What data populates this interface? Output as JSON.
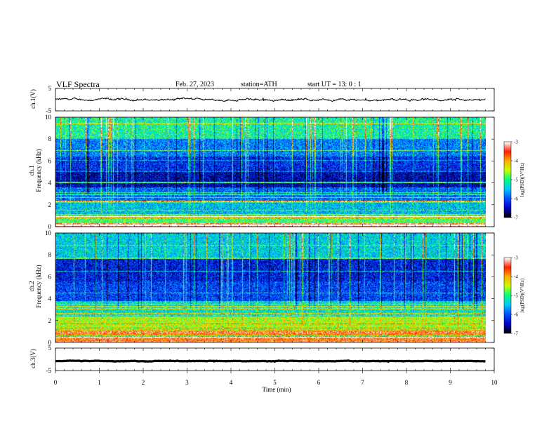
{
  "header": {
    "title": "VLF  Spectra",
    "date": "Feb. 27, 2023",
    "station": "station=ATH",
    "start": "start  UT  =    13: 0   : 1"
  },
  "chart_data": [
    {
      "type": "line",
      "panel": "ch1-waveform",
      "ylabel": "ch.1(V)",
      "yticks": [
        "5",
        "-5"
      ],
      "ylim": [
        -5,
        5
      ],
      "xlim": [
        0,
        10
      ],
      "x_end": 9.8,
      "baseline_value": 0,
      "approx_amplitude": 0.8,
      "color": "#000000"
    },
    {
      "type": "heatmap",
      "panel": "ch1-spectrogram",
      "ylabel": "ch.1\nFrequency  (kHz)",
      "yticks": [
        "0",
        "2",
        "4",
        "6",
        "8",
        "10"
      ],
      "ylim": [
        0,
        10
      ],
      "xlim": [
        0,
        10
      ],
      "x_end": 9.8,
      "bands_kHz": [
        {
          "from": 0.0,
          "to": 0.3,
          "level": -3.4
        },
        {
          "from": 0.3,
          "to": 1.1,
          "level": -4.9
        },
        {
          "from": 1.1,
          "to": 2.2,
          "level": -5.5
        },
        {
          "from": 2.2,
          "to": 3.6,
          "level": -5.9
        },
        {
          "from": 3.6,
          "to": 5.2,
          "level": -6.5
        },
        {
          "from": 5.2,
          "to": 6.4,
          "level": -6.2
        },
        {
          "from": 6.4,
          "to": 8.0,
          "level": -5.8
        },
        {
          "from": 8.0,
          "to": 10.0,
          "level": -5.1
        }
      ],
      "colorbar": {
        "label": "log(PSD)(V²/Hz)",
        "ticks": [
          "-3",
          "-4",
          "-5",
          "-6",
          "-7"
        ],
        "range": [
          -7,
          -3
        ]
      }
    },
    {
      "type": "heatmap",
      "panel": "ch2-spectrogram",
      "ylabel": "ch.2\nFrequency  (kHz)",
      "yticks": [
        "0",
        "2",
        "4",
        "6",
        "8",
        "10"
      ],
      "ylim": [
        0,
        10
      ],
      "xlim": [
        0,
        10
      ],
      "x_end": 9.8,
      "bands_kHz": [
        {
          "from": 0.0,
          "to": 0.4,
          "level": -3.6
        },
        {
          "from": 0.4,
          "to": 1.2,
          "level": -4.8
        },
        {
          "from": 1.2,
          "to": 2.4,
          "level": -4.5
        },
        {
          "from": 2.4,
          "to": 3.8,
          "level": -5.3
        },
        {
          "from": 3.8,
          "to": 5.6,
          "level": -6.1
        },
        {
          "from": 5.6,
          "to": 7.6,
          "level": -6.3
        },
        {
          "from": 7.6,
          "to": 10.0,
          "level": -5.4
        }
      ],
      "colorbar": {
        "label": "log(PSD)(V²/Hz)",
        "ticks": [
          "-3",
          "-4",
          "-5",
          "-6",
          "-7"
        ],
        "range": [
          -7,
          -3
        ]
      }
    },
    {
      "type": "line",
      "panel": "ch3-waveform",
      "ylabel": "ch.3(V)",
      "yticks": [
        "5",
        "-5"
      ],
      "ylim": [
        -5,
        5
      ],
      "xlim": [
        0,
        10
      ],
      "x_end": 9.8,
      "baseline_value": -0.8,
      "approx_amplitude": 0.2,
      "color": "#000000"
    }
  ],
  "xaxis": {
    "label": "Time  (min)",
    "ticks": [
      "0",
      "1",
      "2",
      "3",
      "4",
      "5",
      "6",
      "7",
      "8",
      "9",
      "10"
    ]
  },
  "colors": {
    "colormap": [
      "#000000",
      "#0000c8",
      "#0050ff",
      "#00c8ff",
      "#00ff80",
      "#c8ff00",
      "#ffb000",
      "#ff2000",
      "#ffffff"
    ]
  }
}
